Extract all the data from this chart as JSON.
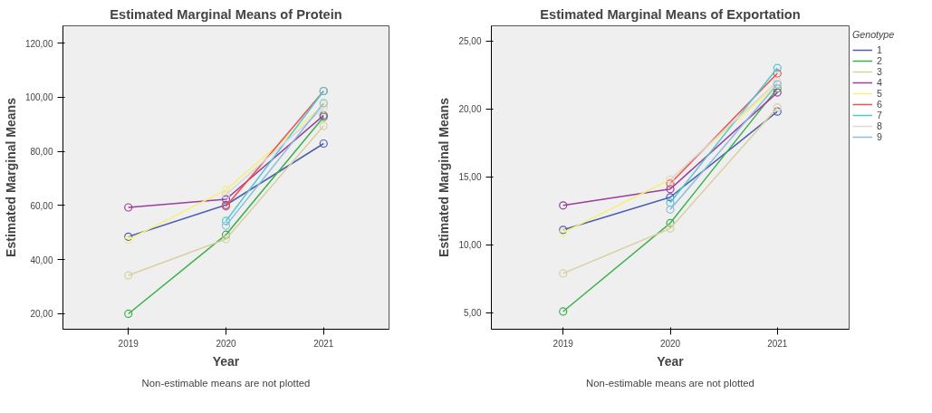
{
  "chart_data": [
    {
      "type": "line",
      "title": "Estimated Marginal Means of Protein",
      "xlabel": "Year",
      "ylabel": "Estimated Marginal Means",
      "categories": [
        "2019",
        "2020",
        "2021"
      ],
      "marker": "circle",
      "grid": false,
      "legend": false,
      "ylim": [
        14.3,
        126.4
      ],
      "yticks": [
        {
          "value": 20,
          "label": "20,00"
        },
        {
          "value": 40,
          "label": "40,00"
        },
        {
          "value": 60,
          "label": "60,00"
        },
        {
          "value": 80,
          "label": "80,00"
        },
        {
          "value": 100,
          "label": "100,00"
        },
        {
          "value": 120,
          "label": "120,00"
        }
      ],
      "series": [
        {
          "color": "#4e5fb0",
          "values": [
            48.5,
            60.2,
            82.9
          ]
        },
        {
          "color": "#3cb04a",
          "values": [
            20,
            49.2,
            92.7
          ]
        },
        {
          "color": "#d8d0a0",
          "values": [
            34.2,
            47.6,
            89.4
          ]
        },
        {
          "color": "#9a3f9c",
          "values": [
            59.3,
            62.3,
            93.3
          ]
        },
        {
          "color": "#f4f07a",
          "values": [
            47.4,
            65.8,
            97.1
          ]
        },
        {
          "color": "#ee5050",
          "values": [
            null,
            59.7,
            102.3
          ]
        },
        {
          "color": "#50c8d0",
          "values": [
            null,
            54.3,
            102.3
          ]
        },
        {
          "color": "#d8d8d8",
          "values": [
            null,
            64.0,
            96.0
          ]
        },
        {
          "color": "#8cbce0",
          "values": [
            null,
            52.6,
            97.8
          ]
        }
      ],
      "annotations": [
        "Non-estimable means are not plotted"
      ]
    },
    {
      "type": "line",
      "title": "Estimated Marginal Means of Exportation",
      "xlabel": "Year",
      "ylabel": "Estimated Marginal Means",
      "legend_title": "Genotype",
      "categories": [
        "2019",
        "2020",
        "2021"
      ],
      "marker": "circle",
      "grid": false,
      "legend": "right",
      "ylim": [
        3.8,
        26.1
      ],
      "yticks": [
        {
          "value": 5,
          "label": "5,00"
        },
        {
          "value": 10,
          "label": "10,00"
        },
        {
          "value": 15,
          "label": "15,00"
        },
        {
          "value": 20,
          "label": "20,00"
        },
        {
          "value": 25,
          "label": "25,00"
        }
      ],
      "series": [
        {
          "name": "1",
          "color": "#4e5fb0",
          "values": [
            11.1,
            13.5,
            19.8
          ]
        },
        {
          "name": "2",
          "color": "#3cb04a",
          "values": [
            5.1,
            11.6,
            21.5
          ]
        },
        {
          "name": "3",
          "color": "#d8d0a0",
          "values": [
            7.9,
            11.2,
            20.1
          ]
        },
        {
          "name": "4",
          "color": "#9a3f9c",
          "values": [
            12.9,
            14.1,
            21.2
          ]
        },
        {
          "name": "5",
          "color": "#f4f07a",
          "values": [
            10.9,
            14.8,
            21.8
          ]
        },
        {
          "name": "6",
          "color": "#ee5050",
          "values": [
            null,
            14.5,
            22.6
          ]
        },
        {
          "name": "7",
          "color": "#50c8d0",
          "values": [
            null,
            13.1,
            23.0
          ]
        },
        {
          "name": "8",
          "color": "#d8d8d8",
          "values": [
            null,
            14.8,
            22.0
          ]
        },
        {
          "name": "9",
          "color": "#8cbce0",
          "values": [
            null,
            12.6,
            21.8
          ]
        }
      ],
      "annotations": [
        "Non-estimable means are not plotted"
      ]
    }
  ]
}
